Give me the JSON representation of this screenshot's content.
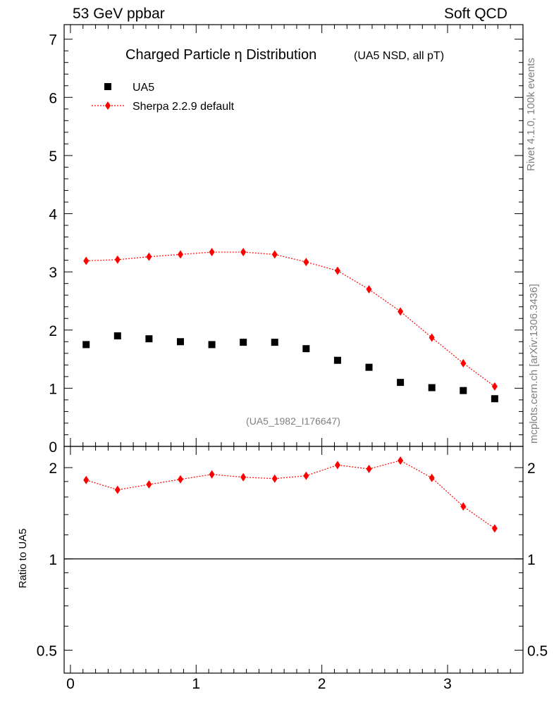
{
  "header": {
    "left": "53 GeV ppbar",
    "right": "Soft QCD"
  },
  "side_labels": {
    "rivet": "Rivet 4.1.0,  100k events",
    "mcplots": "mcplots.cern.ch [arXiv:1306.3436]"
  },
  "colors": {
    "data": "#000000",
    "mc": "#ff0000",
    "watermark": "#808080"
  },
  "chart_data": [
    {
      "type": "scatter",
      "title": "Charged Particle η Distribution",
      "subtitle": "(UA5 NSD, all pT)",
      "annotation": "(UA5_1982_I176647)",
      "xlabel": "",
      "ylabel": "",
      "xlim": [
        -0.05,
        3.6
      ],
      "ylim": [
        0,
        7.25
      ],
      "yticks": [
        0,
        1,
        2,
        3,
        4,
        5,
        6,
        7
      ],
      "legend_position": "top-left",
      "x": [
        0.125,
        0.375,
        0.625,
        0.875,
        1.125,
        1.375,
        1.625,
        1.875,
        2.125,
        2.375,
        2.625,
        2.875,
        3.125,
        3.375
      ],
      "series": [
        {
          "name": "UA5",
          "marker": "square",
          "values": [
            1.75,
            1.9,
            1.85,
            1.8,
            1.75,
            1.79,
            1.79,
            1.68,
            1.48,
            1.36,
            1.1,
            1.01,
            0.96,
            0.82
          ]
        },
        {
          "name": "Sherpa 2.2.9 default",
          "marker": "diamond",
          "line": "dotted",
          "values": [
            3.19,
            3.21,
            3.26,
            3.3,
            3.34,
            3.34,
            3.3,
            3.17,
            3.02,
            2.7,
            2.32,
            1.87,
            1.43,
            1.03
          ]
        }
      ]
    },
    {
      "type": "line",
      "title": "",
      "xlabel": "",
      "ylabel": "Ratio to UA5",
      "yscale": "log",
      "ylim": [
        0.42,
        2.35
      ],
      "yticks": [
        0.5,
        1,
        2
      ],
      "ytick_labels": [
        "0.5",
        "1",
        "2"
      ],
      "xlim": [
        -0.05,
        3.6
      ],
      "xticks": [
        0,
        1,
        2,
        3
      ],
      "xtick_labels": [
        "0",
        "1",
        "2",
        "3"
      ],
      "reference_line": 1,
      "x": [
        0.125,
        0.375,
        0.625,
        0.875,
        1.125,
        1.375,
        1.625,
        1.875,
        2.125,
        2.375,
        2.625,
        2.875,
        3.125,
        3.375
      ],
      "series": [
        {
          "name": "Sherpa 2.2.9 default / UA5",
          "marker": "diamond",
          "line": "dotted",
          "values": [
            1.82,
            1.69,
            1.76,
            1.83,
            1.9,
            1.86,
            1.84,
            1.88,
            2.04,
            1.98,
            2.11,
            1.85,
            1.49,
            1.26
          ]
        }
      ]
    }
  ]
}
